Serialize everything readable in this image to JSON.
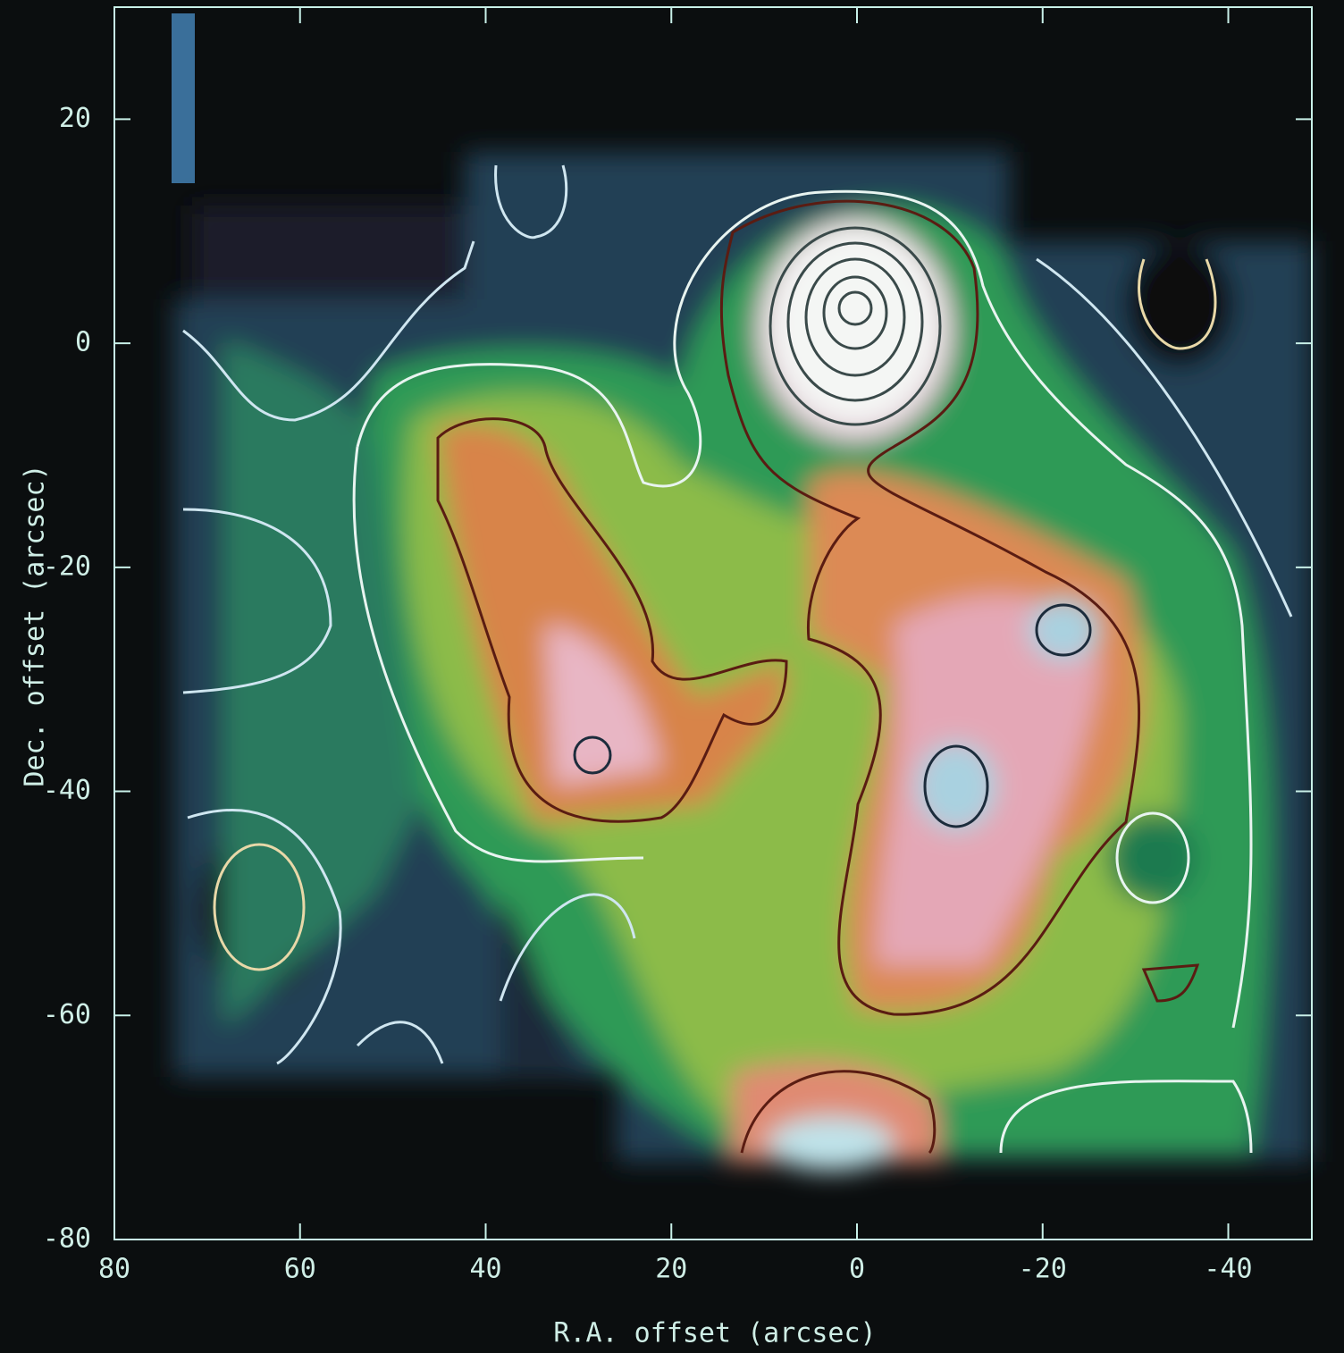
{
  "chart_data": {
    "type": "map",
    "xlabel": "R.A. offset (arcsec)",
    "ylabel": "Dec. offset (arcsec)",
    "xlim": [
      80,
      -49
    ],
    "ylim": [
      -80,
      30
    ],
    "xticks": [
      80,
      60,
      40,
      20,
      0,
      -20,
      -40
    ],
    "yticks": [
      -80,
      -60,
      -40,
      -20,
      0,
      20
    ],
    "frame_color": "#c8f0e8"
  }
}
